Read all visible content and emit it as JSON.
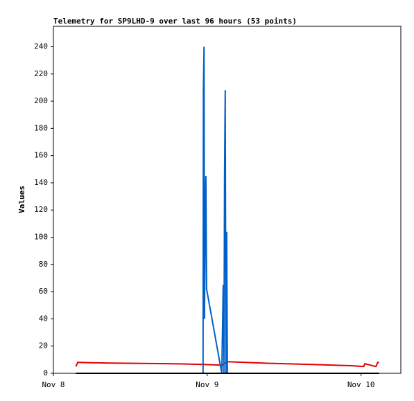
{
  "chart_data": {
    "type": "line",
    "title": "Telemetry for SP9LHD-9 over last 96 hours (53 points)",
    "y_label": "Values",
    "xlim": [
      0,
      54.2
    ],
    "ylim": [
      0,
      255
    ],
    "xticks": [
      {
        "value": 0,
        "label": "Nov 8"
      },
      {
        "value": 24,
        "label": "Nov 9"
      },
      {
        "value": 48,
        "label": "Nov 10"
      }
    ],
    "yticks": [
      0,
      20,
      40,
      60,
      80,
      100,
      120,
      140,
      160,
      180,
      200,
      220,
      240
    ],
    "series": [
      {
        "color": "#e00000",
        "x": [
          3.5,
          3.8,
          9.0,
          18.7,
          23.4,
          26.3,
          27.1,
          32.8,
          40.3,
          46.8,
          48.4,
          48.6,
          50.3,
          50.6,
          50.8
        ],
        "values": [
          5,
          8,
          7.5,
          7,
          6.5,
          6,
          8.5,
          7.5,
          6.5,
          5.5,
          5,
          7,
          5,
          8,
          8
        ]
      },
      {
        "color": "#0060c8",
        "x": [
          23.35,
          23.4,
          23.5,
          23.57,
          23.68,
          23.79,
          23.9,
          26.27,
          26.49,
          26.6,
          26.7,
          26.81,
          26.92,
          27.03,
          27.14
        ],
        "values": [
          0,
          208,
          240,
          40,
          113,
          145,
          62,
          0,
          65,
          0,
          145,
          208,
          0,
          104,
          0
        ]
      },
      {
        "color": "#000000",
        "x": [
          3.5,
          50.8
        ],
        "values": [
          0,
          0
        ]
      }
    ]
  }
}
